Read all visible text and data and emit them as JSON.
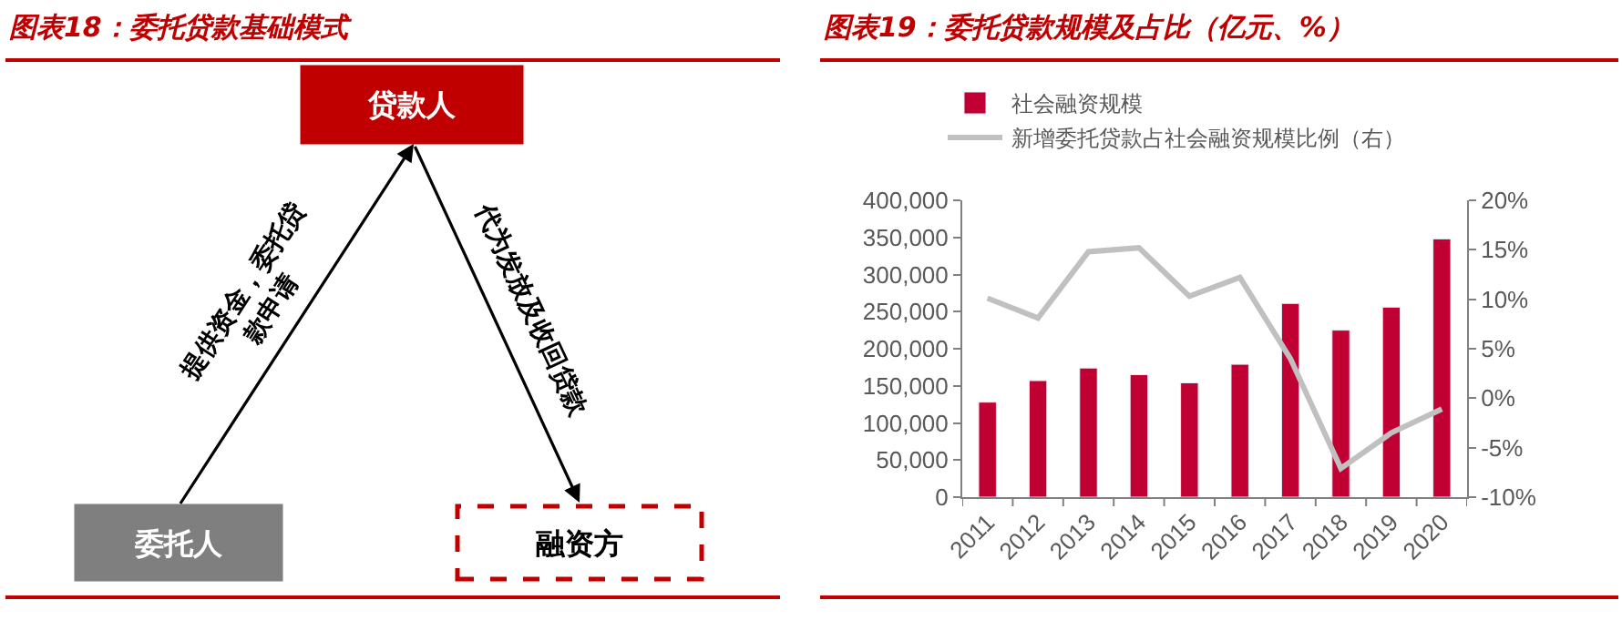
{
  "chart_data": [
    {
      "type": "other",
      "title": "图表18：委托贷款基础模式",
      "categories": [
        "贷款人",
        "委托人",
        "融资方"
      ],
      "colors": [
        "#c00000",
        "#7f7f7f",
        "#ffffff"
      ],
      "annotations": [
        "提供资金，委托贷款申请",
        "代为发放及收回贷款"
      ]
    },
    {
      "type": "bar",
      "title": "图表19：委托贷款规模及占比（亿元、%）",
      "categories": [
        "2011",
        "2012",
        "2013",
        "2014",
        "2015",
        "2016",
        "2017",
        "2018",
        "2019",
        "2020"
      ],
      "series": [
        {
          "name": "社会融资规模",
          "color": "#c00032",
          "values": [
            128000,
            157000,
            174000,
            165000,
            154000,
            179000,
            261000,
            225000,
            256000,
            348000
          ]
        },
        {
          "name": "新增委托贷款占社会融资规模比例（右）",
          "type": "line",
          "axis": "y2",
          "color": "#c0c0c0",
          "values": [
            10.1,
            8.1,
            14.8,
            15.2,
            10.3,
            12.2,
            4.0,
            -7.1,
            -3.5,
            -1.1
          ]
        }
      ],
      "ylim": [
        0,
        400000
      ],
      "yticks": [
        {
          "value": 0,
          "label": "0"
        },
        {
          "value": 50000,
          "label": "50,000"
        },
        {
          "value": 100000,
          "label": "100,000"
        },
        {
          "value": 150000,
          "label": "150,000"
        },
        {
          "value": 200000,
          "label": "200,000"
        },
        {
          "value": 250000,
          "label": "250,000"
        },
        {
          "value": 300000,
          "label": "300,000"
        },
        {
          "value": 350000,
          "label": "350,000"
        },
        {
          "value": 400000,
          "label": "400,000"
        }
      ],
      "y2lim": [
        -10,
        20
      ],
      "y2ticks": [
        {
          "value": -10,
          "label": "-10%"
        },
        {
          "value": -5,
          "label": "-5%"
        },
        {
          "value": 0,
          "label": "0%"
        },
        {
          "value": 5,
          "label": "5%"
        },
        {
          "value": 10,
          "label": "10%"
        },
        {
          "value": 15,
          "label": "15%"
        },
        {
          "value": 20,
          "label": "20%"
        }
      ],
      "legend": "top left",
      "marker": "none",
      "line_style": "solid"
    }
  ]
}
